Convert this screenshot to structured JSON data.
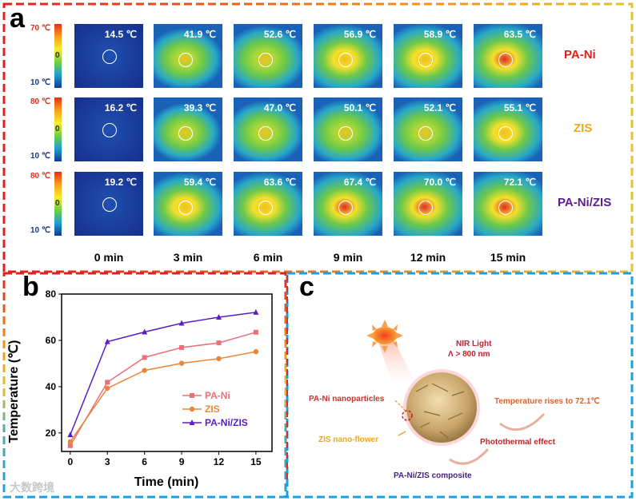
{
  "panel_a": {
    "label": "a",
    "times": [
      "0 min",
      "3 min",
      "6 min",
      "9 min",
      "12 min",
      "15 min"
    ],
    "rows": [
      {
        "name": "PA-Ni",
        "color": "#e0201a",
        "scale_max": "70 ℃",
        "scale_mid": "0",
        "scale_min": "10 ℃",
        "temps": [
          "14.5 ℃",
          "41.9 ℃",
          "52.6 ℃",
          "56.9 ℃",
          "58.9 ℃",
          "63.5 ℃"
        ]
      },
      {
        "name": "ZIS",
        "color": "#f0a818",
        "scale_max": "80 ℃",
        "scale_mid": "0",
        "scale_min": "10 ℃",
        "temps": [
          "16.2 ℃",
          "39.3 ℃",
          "47.0 ℃",
          "50.1 ℃",
          "52.1 ℃",
          "55.1 ℃"
        ]
      },
      {
        "name": "PA-Ni/ZIS",
        "color": "#5b1f8c",
        "scale_max": "80 ℃",
        "scale_mid": "0",
        "scale_min": "10 ℃",
        "temps": [
          "19.2 ℃",
          "59.4 ℃",
          "63.6 ℃",
          "67.4 ℃",
          "70.0 ℃",
          "72.1 ℃"
        ]
      }
    ]
  },
  "chart_data": {
    "label": "b",
    "type": "line",
    "xlabel": "Time (min)",
    "ylabel": "Temperature (℃)",
    "x": [
      0,
      3,
      6,
      9,
      12,
      15
    ],
    "xticks": [
      "0",
      "3",
      "6",
      "9",
      "12",
      "15"
    ],
    "yticks": [
      "20",
      "40",
      "60",
      "80"
    ],
    "xlim": [
      -0.7,
      16.3
    ],
    "ylim": [
      12,
      80
    ],
    "legend": "bottom-right",
    "series": [
      {
        "name": "PA-Ni",
        "color": "#e8707a",
        "marker": "square",
        "values": [
          14.5,
          41.9,
          52.6,
          56.9,
          58.9,
          63.5
        ]
      },
      {
        "name": "ZIS",
        "color": "#e8873a",
        "marker": "circle",
        "values": [
          16.2,
          39.3,
          47.0,
          50.1,
          52.1,
          55.1
        ]
      },
      {
        "name": "PA-Ni/ZIS",
        "color": "#5a1fc0",
        "marker": "triangle",
        "values": [
          19.2,
          59.4,
          63.6,
          67.4,
          70.0,
          72.1
        ]
      }
    ]
  },
  "panel_c": {
    "label": "c",
    "nir_line1": "NIR Light",
    "nir_line2": "Λ > 800 nm",
    "nanoparticles": "PA-Ni nanoparticles",
    "nanoflower": "ZIS nano-flower",
    "temp_rise": "Temperature rises to 72.1℃",
    "photothermal": "Photothermal effect",
    "composite": "PA-Ni/ZIS composite"
  },
  "watermark": "大数跨境"
}
